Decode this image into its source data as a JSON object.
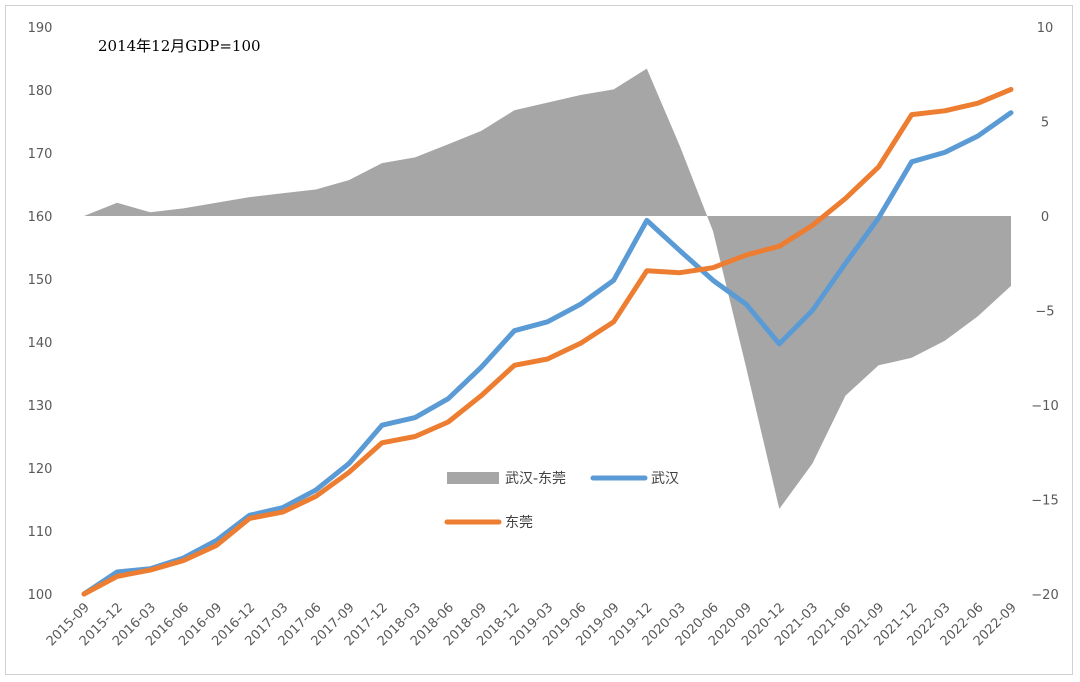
{
  "chart_data": {
    "type": "line",
    "annotation": "2014年12月GDP=100",
    "categories": [
      "2015-09",
      "2015-12",
      "2016-03",
      "2016-06",
      "2016-09",
      "2016-12",
      "2017-03",
      "2017-06",
      "2017-09",
      "2017-12",
      "2018-03",
      "2018-06",
      "2018-09",
      "2018-12",
      "2019-03",
      "2019-06",
      "2019-09",
      "2019-12",
      "2020-03",
      "2020-06",
      "2020-09",
      "2020-12",
      "2021-03",
      "2021-06",
      "2021-09",
      "2021-12",
      "2022-03",
      "2022-06",
      "2022-09"
    ],
    "left_axis": {
      "ylim": [
        100,
        190
      ],
      "ticks": [
        "100",
        "110",
        "120",
        "130",
        "140",
        "150",
        "160",
        "170",
        "180",
        "190"
      ]
    },
    "right_axis": {
      "ylim": [
        -20,
        10
      ],
      "ticks": [
        "−20",
        "−15",
        "−10",
        "−5",
        "0",
        "5",
        "10"
      ]
    },
    "series": [
      {
        "name": "武汉-东莞",
        "kind": "area",
        "axis": "right",
        "color": "#a6a6a6",
        "values": [
          0.0,
          0.7,
          0.2,
          0.4,
          0.7,
          1.0,
          1.2,
          1.4,
          1.9,
          2.8,
          3.1,
          3.8,
          4.5,
          5.6,
          6.0,
          6.4,
          6.7,
          7.8,
          3.7,
          -0.8,
          -8.0,
          -15.5,
          -13.1,
          -9.5,
          -7.9,
          -7.5,
          -6.6,
          -5.3,
          -3.7
        ]
      },
      {
        "name": "武汉",
        "kind": "line",
        "axis": "left",
        "color": "#5b9bd5",
        "values": [
          100.0,
          103.5,
          104.0,
          105.7,
          108.5,
          112.5,
          113.7,
          116.5,
          120.7,
          126.8,
          128.0,
          131.0,
          136.0,
          141.8,
          143.2,
          146.0,
          149.8,
          159.3,
          154.5,
          149.8,
          146.0,
          139.7,
          145.0,
          152.5,
          159.7,
          168.6,
          170.1,
          172.7,
          176.4
        ]
      },
      {
        "name": "东莞",
        "kind": "line",
        "axis": "left",
        "color": "#ed7d31",
        "values": [
          100.0,
          102.8,
          103.8,
          105.3,
          107.7,
          112.0,
          113.0,
          115.5,
          119.3,
          124.0,
          125.0,
          127.3,
          131.5,
          136.3,
          137.3,
          139.8,
          143.2,
          151.3,
          151.0,
          151.8,
          153.8,
          155.2,
          158.5,
          162.8,
          167.8,
          176.1,
          176.7,
          177.9,
          180.1
        ]
      }
    ],
    "legend": [
      {
        "label": "武汉-东莞",
        "kind": "area",
        "color": "#a6a6a6"
      },
      {
        "label": "武汉",
        "kind": "line",
        "color": "#5b9bd5"
      },
      {
        "label": "东莞",
        "kind": "line",
        "color": "#ed7d31"
      }
    ],
    "grid": false,
    "legend_placement": "center"
  }
}
